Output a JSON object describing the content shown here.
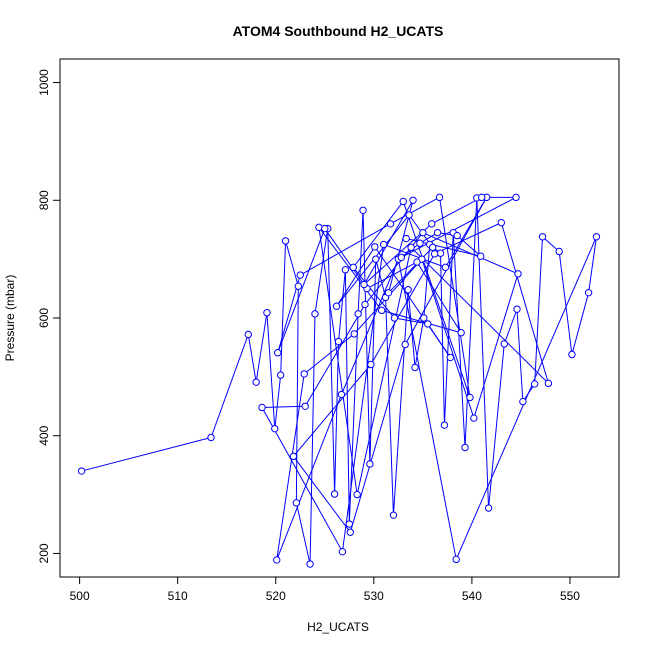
{
  "chart_data": {
    "type": "scatter",
    "title": "ATOM4 Southbound H2_UCATS",
    "xlabel": "H2_UCATS",
    "ylabel": "Pressure (mbar)",
    "xlim": [
      498,
      555
    ],
    "ylim": [
      1040,
      160
    ],
    "y_reversed": true,
    "grid": false,
    "legend": "none",
    "xticks": [
      500,
      510,
      520,
      530,
      540,
      550
    ],
    "yticks": [
      200,
      400,
      600,
      800,
      1000
    ],
    "series_color": "#0000ff",
    "marker": "open-circle",
    "lines": true,
    "x": [
      500.2,
      513.4,
      517.2,
      518.0,
      519.1,
      519.9,
      520.5,
      521.0,
      522.3,
      522.1,
      523.5,
      524.0,
      525.3,
      526.0,
      526.4,
      527.1,
      527.5,
      528.4,
      528.9,
      529.6,
      530.2,
      531.2,
      532.0,
      533.5,
      534.2,
      535.1,
      535.7,
      536.8,
      537.2,
      538.1,
      539.3,
      540.5,
      541.7,
      543.3,
      544.6,
      545.2,
      546.4,
      547.2,
      548.9,
      550.2,
      551.9,
      552.7,
      538.4,
      532.5,
      526.7,
      520.1,
      522.9,
      528.0,
      534.9,
      540.2,
      544.7,
      535.0,
      529.1,
      523.0,
      518.6,
      526.8,
      531.0,
      537.3,
      541.5,
      533.2,
      527.6,
      521.8,
      529.7,
      536.2,
      543.0,
      547.8,
      533.8,
      528.3,
      524.4,
      530.8,
      538.9,
      534.4,
      529.3,
      525.0,
      520.2,
      522.5,
      531.7,
      536.7,
      539.8,
      533.0,
      527.9,
      532.1,
      535.5,
      537.8,
      530.1,
      526.2,
      533.6,
      536.0,
      531.5,
      534.0,
      529.0,
      535.9,
      541.0,
      544.5,
      532.8,
      534.7,
      536.5,
      538.5,
      540.9,
      533.3
    ],
    "y": [
      340,
      397,
      572,
      491,
      609,
      412,
      503,
      731,
      654,
      286,
      182,
      607,
      752,
      301,
      560,
      682,
      250,
      607,
      783,
      352,
      700,
      635,
      265,
      648,
      516,
      600,
      725,
      710,
      418,
      745,
      380,
      804,
      277,
      556,
      615,
      458,
      488,
      738,
      713,
      538,
      643,
      738,
      190,
      700,
      470,
      189,
      505,
      573,
      700,
      430,
      675,
      745,
      623,
      450,
      448,
      203,
      725,
      686,
      805,
      555,
      236,
      365,
      521,
      709,
      762,
      489,
      720,
      300,
      754,
      613,
      575,
      695,
      650,
      752,
      541,
      673,
      760,
      805,
      465,
      798,
      686,
      600,
      590,
      533,
      721,
      620,
      775,
      720,
      643,
      800,
      657,
      760,
      805,
      805,
      703,
      727,
      745,
      740,
      705,
      735
    ]
  }
}
